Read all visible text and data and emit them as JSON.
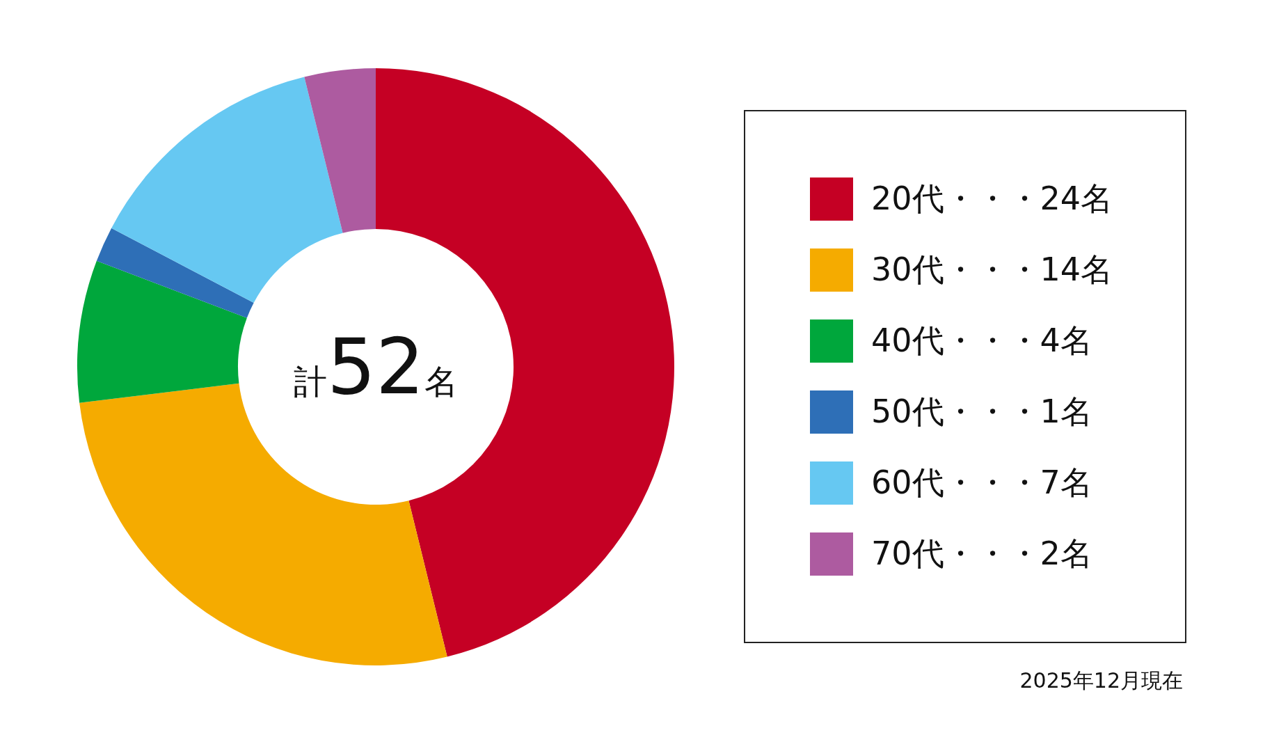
{
  "chart_data": {
    "type": "donut",
    "categories": [
      "20代・・・24名",
      "30代・・・14名",
      "40代・・・4名",
      "50代・・・1名",
      "60代・・・7名",
      "70代・・・2名"
    ],
    "values": [
      24,
      14,
      4,
      1,
      7,
      2
    ],
    "colors": [
      "#c50024",
      "#f5ab00",
      "#00a73c",
      "#2e6fb7",
      "#66c8f2",
      "#ad5ba0"
    ],
    "title": "計52名",
    "legend": "right",
    "annotations": [
      "2025年12月現在"
    ]
  }
}
